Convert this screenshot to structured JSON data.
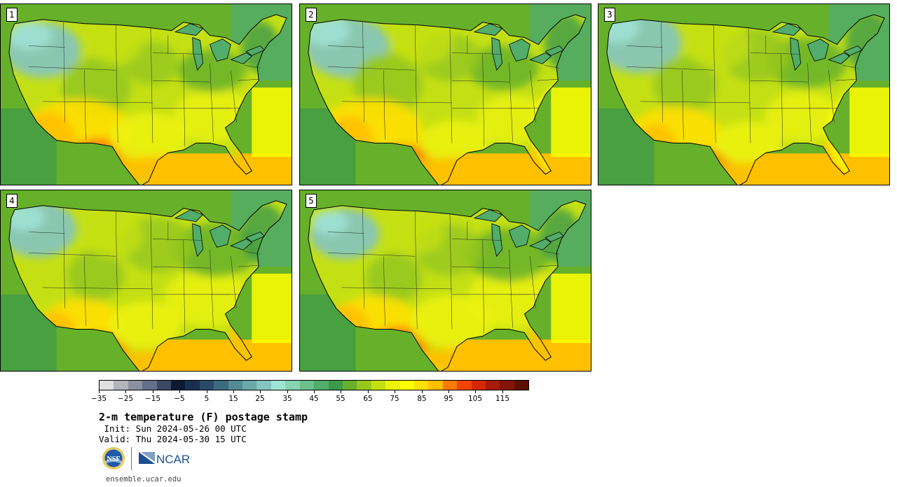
{
  "panels": [
    {
      "label": "1",
      "variant": 0
    },
    {
      "label": "2",
      "variant": 1
    },
    {
      "label": "3",
      "variant": 2
    },
    {
      "label": "4",
      "variant": 3
    },
    {
      "label": "5",
      "variant": 4
    }
  ],
  "colorbar": {
    "colors": [
      "#e0e0e0",
      "#b4b4bc",
      "#8c90a0",
      "#64708a",
      "#3a4a66",
      "#0c1a34",
      "#1a3050",
      "#2a4a6a",
      "#3e6a80",
      "#548a96",
      "#6aa8ac",
      "#84c4c2",
      "#a0e4d6",
      "#86d4b0",
      "#6cc08c",
      "#52ac6a",
      "#3c9a4a",
      "#66b02a",
      "#96c81c",
      "#c4e014",
      "#ecf20c",
      "#ffff00",
      "#ffe000",
      "#ffc000",
      "#ff7a00",
      "#f04400",
      "#d62800",
      "#a81a0a",
      "#821408",
      "#5c1004"
    ],
    "tick_labels": [
      "−35",
      "−25",
      "−15",
      "−5",
      "5",
      "15",
      "25",
      "35",
      "45",
      "55",
      "65",
      "75",
      "85",
      "95",
      "105",
      "115"
    ],
    "min": -40,
    "max": 120
  },
  "title": "2-m temperature (F) postage stamp",
  "init_line": " Init: Sun 2024-05-26 00 UTC",
  "valid_line": "Valid: Thu 2024-05-30 15 UTC",
  "logos": {
    "nsf": "NSF",
    "ncar": "NCAR"
  },
  "url": "ensemble.ucar.edu"
}
